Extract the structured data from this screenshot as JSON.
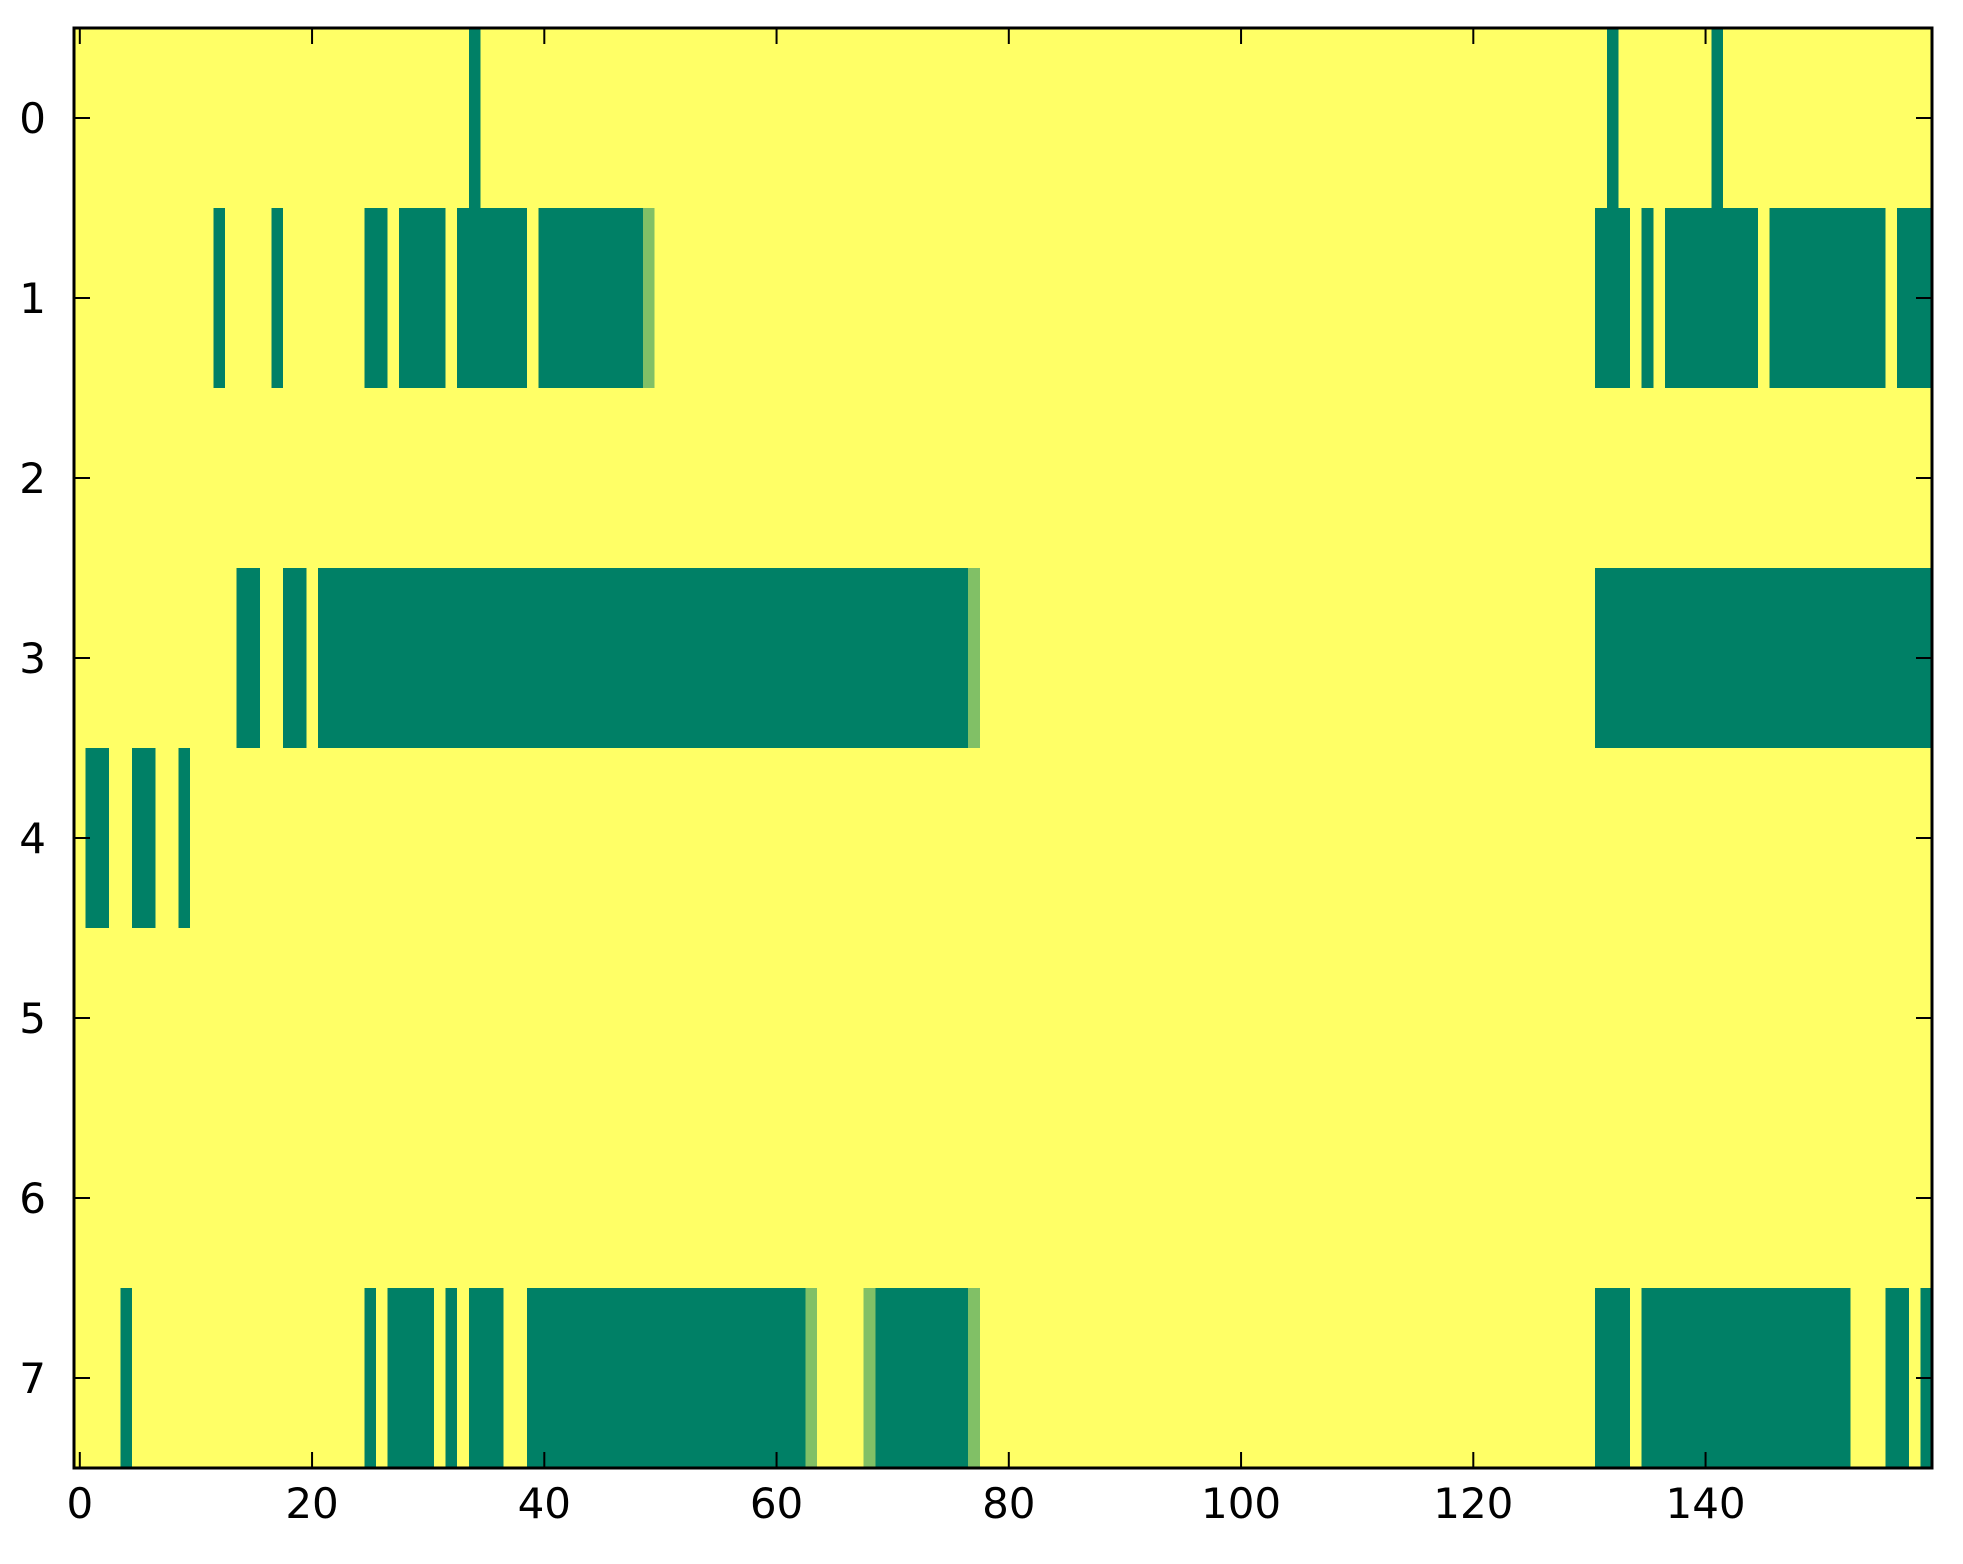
{
  "chart_data": {
    "type": "heatmap",
    "title": "",
    "xlabel": "",
    "ylabel": "",
    "n_rows": 8,
    "n_cols": 160,
    "x_ticks": [
      0,
      20,
      40,
      60,
      80,
      100,
      120,
      140
    ],
    "y_ticks": [
      0,
      1,
      2,
      3,
      4,
      5,
      6,
      7
    ],
    "xlim": [
      -0.5,
      159.5
    ],
    "ylim": [
      7.5,
      -0.5
    ],
    "grid": false,
    "legend": "none",
    "colorbar": false,
    "colormap": "summer",
    "colors": {
      "low": "#008066",
      "mid": "#81c066",
      "high": "#ffff66"
    },
    "background_value": 1.0,
    "cell_value_legend": "each run spans columns start..end inclusive with the given value; all other cells equal background_value",
    "runs": [
      {
        "row": 0,
        "start": 34,
        "end": 34,
        "value": 0.0
      },
      {
        "row": 0,
        "start": 132,
        "end": 132,
        "value": 0.0
      },
      {
        "row": 0,
        "start": 141,
        "end": 141,
        "value": 0.0
      },
      {
        "row": 1,
        "start": 12,
        "end": 12,
        "value": 0.0
      },
      {
        "row": 1,
        "start": 17,
        "end": 17,
        "value": 0.0
      },
      {
        "row": 1,
        "start": 25,
        "end": 26,
        "value": 0.0
      },
      {
        "row": 1,
        "start": 28,
        "end": 31,
        "value": 0.0
      },
      {
        "row": 1,
        "start": 33,
        "end": 38,
        "value": 0.0
      },
      {
        "row": 1,
        "start": 40,
        "end": 48,
        "value": 0.0
      },
      {
        "row": 1,
        "start": 49,
        "end": 49,
        "value": 0.5
      },
      {
        "row": 1,
        "start": 131,
        "end": 133,
        "value": 0.0
      },
      {
        "row": 1,
        "start": 135,
        "end": 135,
        "value": 0.0
      },
      {
        "row": 1,
        "start": 137,
        "end": 144,
        "value": 0.0
      },
      {
        "row": 1,
        "start": 146,
        "end": 155,
        "value": 0.0
      },
      {
        "row": 1,
        "start": 157,
        "end": 159,
        "value": 0.0
      },
      {
        "row": 3,
        "start": 14,
        "end": 15,
        "value": 0.0
      },
      {
        "row": 3,
        "start": 18,
        "end": 19,
        "value": 0.0
      },
      {
        "row": 3,
        "start": 21,
        "end": 76,
        "value": 0.0
      },
      {
        "row": 3,
        "start": 77,
        "end": 77,
        "value": 0.5
      },
      {
        "row": 3,
        "start": 131,
        "end": 159,
        "value": 0.0
      },
      {
        "row": 4,
        "start": 1,
        "end": 2,
        "value": 0.0
      },
      {
        "row": 4,
        "start": 5,
        "end": 6,
        "value": 0.0
      },
      {
        "row": 4,
        "start": 9,
        "end": 9,
        "value": 0.0
      },
      {
        "row": 7,
        "start": 4,
        "end": 4,
        "value": 0.0
      },
      {
        "row": 7,
        "start": 25,
        "end": 25,
        "value": 0.0
      },
      {
        "row": 7,
        "start": 27,
        "end": 30,
        "value": 0.0
      },
      {
        "row": 7,
        "start": 32,
        "end": 32,
        "value": 0.0
      },
      {
        "row": 7,
        "start": 34,
        "end": 36,
        "value": 0.0
      },
      {
        "row": 7,
        "start": 39,
        "end": 62,
        "value": 0.0
      },
      {
        "row": 7,
        "start": 63,
        "end": 63,
        "value": 0.5
      },
      {
        "row": 7,
        "start": 68,
        "end": 68,
        "value": 0.5
      },
      {
        "row": 7,
        "start": 69,
        "end": 76,
        "value": 0.0
      },
      {
        "row": 7,
        "start": 77,
        "end": 77,
        "value": 0.5
      },
      {
        "row": 7,
        "start": 131,
        "end": 133,
        "value": 0.0
      },
      {
        "row": 7,
        "start": 135,
        "end": 152,
        "value": 0.0
      },
      {
        "row": 7,
        "start": 156,
        "end": 157,
        "value": 0.0
      },
      {
        "row": 7,
        "start": 159,
        "end": 159,
        "value": 0.0
      }
    ]
  }
}
